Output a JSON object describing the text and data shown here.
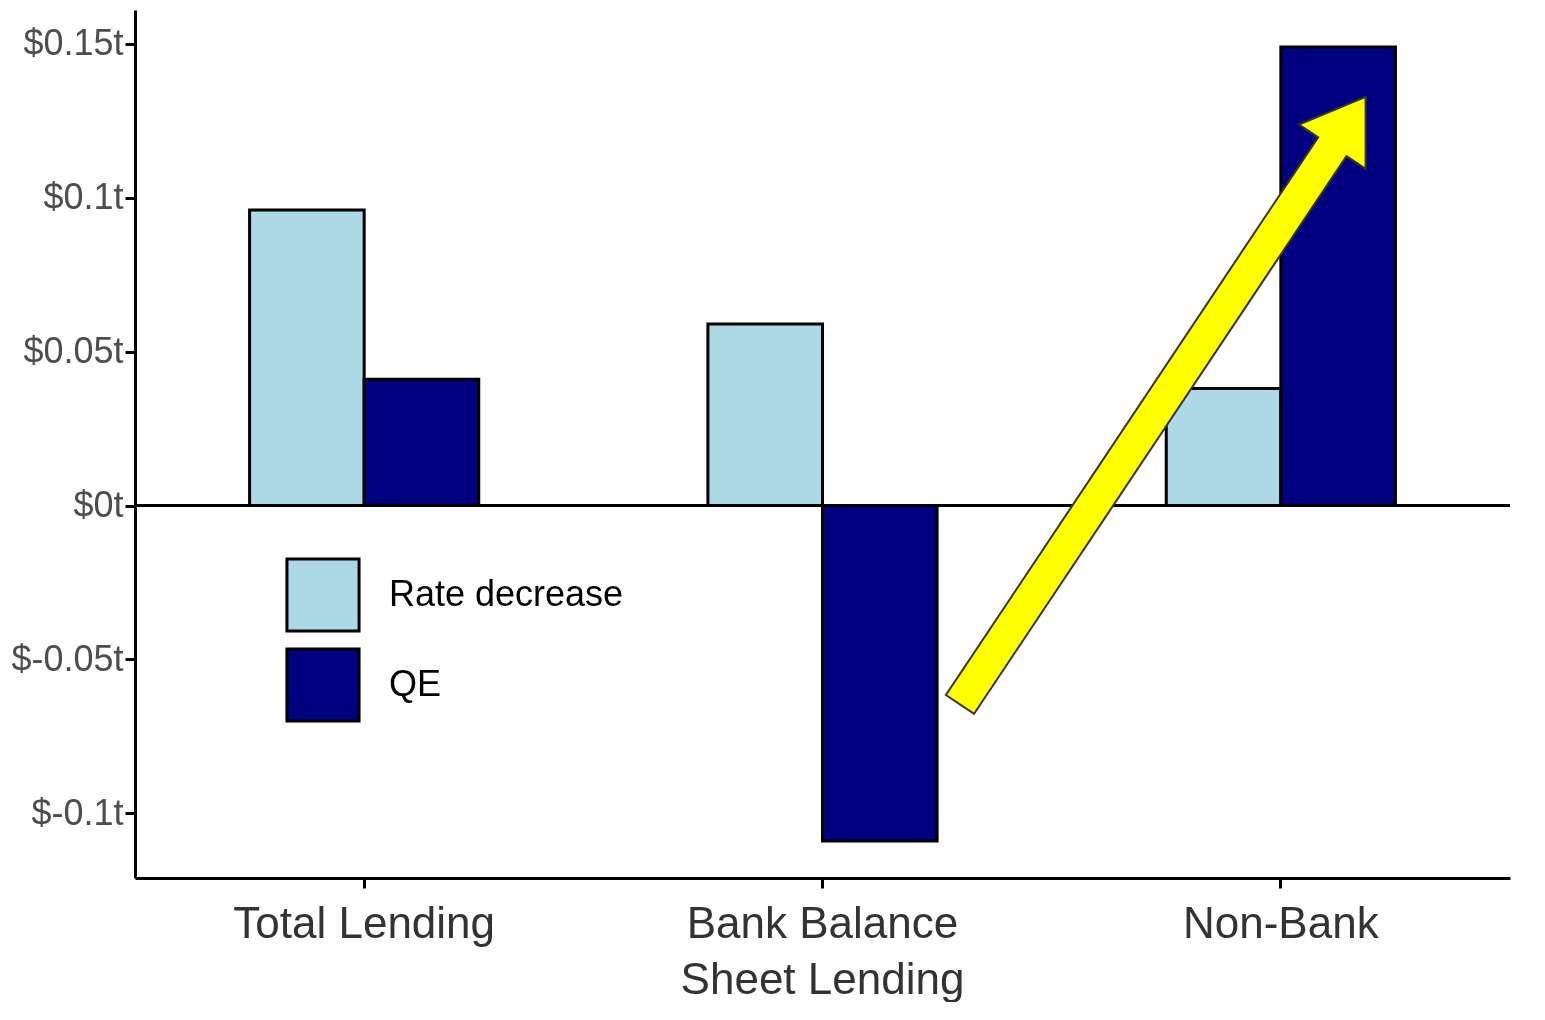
{
  "chart_data": {
    "type": "bar",
    "categories": [
      "Total Lending",
      "Bank Balance Sheet Lending",
      "Non-Bank"
    ],
    "series": [
      {
        "name": "Rate decrease",
        "color": "#add8e6",
        "values": [
          0.096,
          0.059,
          0.038
        ]
      },
      {
        "name": "QE",
        "color": "#000080",
        "values": [
          0.041,
          -0.109,
          0.149
        ]
      }
    ],
    "ylim": [
      -0.121,
      0.161
    ],
    "yticks": [
      {
        "value": -0.1,
        "label": "$-0.1t"
      },
      {
        "value": -0.05,
        "label": "$-0.05t"
      },
      {
        "value": 0,
        "label": "$0t"
      },
      {
        "value": 0.05,
        "label": "$0.05t"
      },
      {
        "value": 0.1,
        "label": "$0.1t"
      },
      {
        "value": 0.15,
        "label": "$0.15t"
      }
    ],
    "ref_lines": [
      {
        "axis": "y",
        "value": 0,
        "color": "#000000"
      }
    ],
    "legend": "bottom left",
    "grid": false
  }
}
